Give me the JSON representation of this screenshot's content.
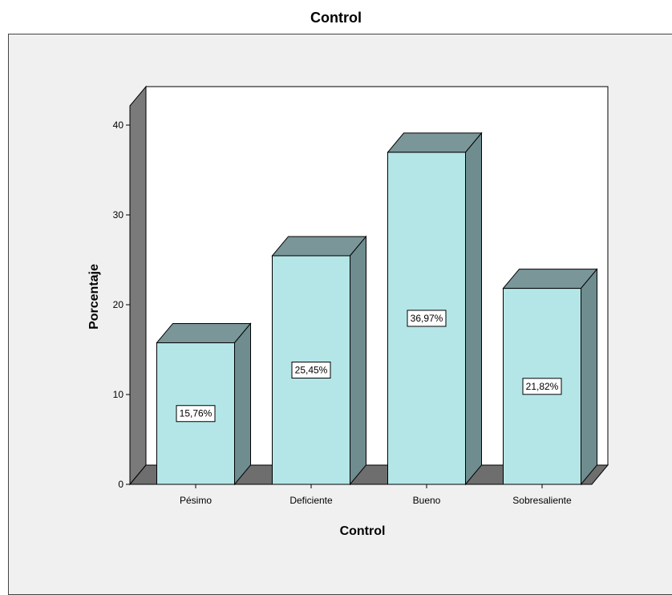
{
  "chart_data": {
    "type": "bar",
    "title": "Control",
    "xlabel": "Control",
    "ylabel": "Porcentaje",
    "categories": [
      "Pésimo",
      "Deficiente",
      "Bueno",
      "Sobresaliente"
    ],
    "values": [
      15.76,
      25.45,
      36.97,
      21.82
    ],
    "data_labels": [
      "15,76%",
      "25,45%",
      "36,97%",
      "21,82%"
    ],
    "yticks": [
      "0",
      "10",
      "20",
      "30",
      "40"
    ],
    "ylim": [
      0,
      42
    ],
    "grid": false,
    "colors": {
      "bar_front": "#b4e6e8",
      "bar_side": "#6f8c8f",
      "bar_top": "#7a9698",
      "wall_back": "#ffffff",
      "wall_side": "#7a7a7a",
      "floor": "#6e6e6e",
      "frame_bg": "#f0f0f0"
    }
  }
}
